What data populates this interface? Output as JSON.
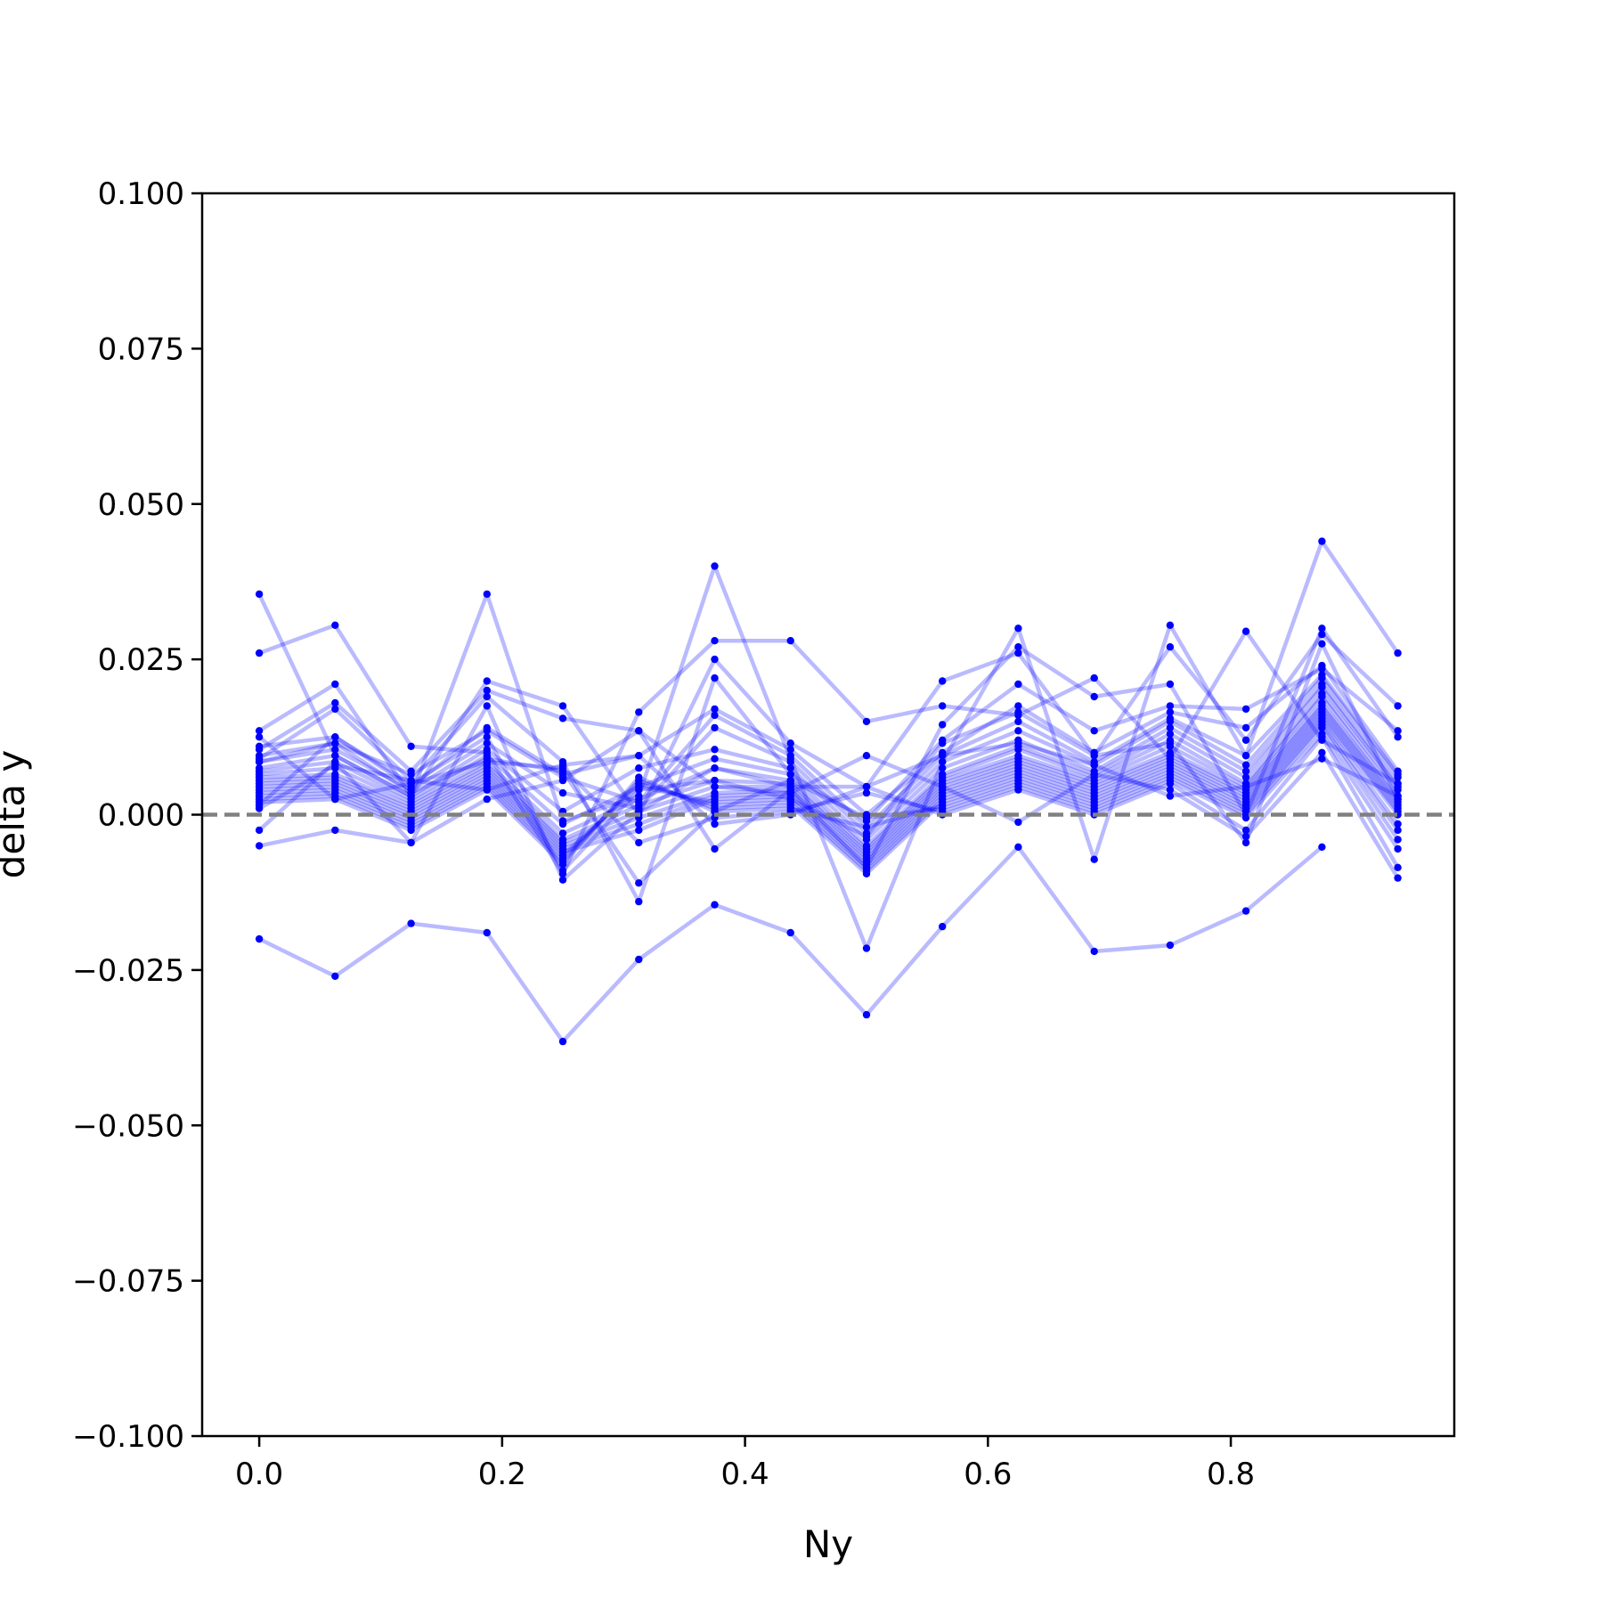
{
  "chart_data": {
    "type": "line",
    "xlabel": "Ny",
    "ylabel": "delta y",
    "xlim": [
      -0.047,
      0.984
    ],
    "ylim": [
      -0.1,
      0.1
    ],
    "xticks": [
      {
        "value": 0.0,
        "label": "0.0"
      },
      {
        "value": 0.2,
        "label": "0.2"
      },
      {
        "value": 0.4,
        "label": "0.4"
      },
      {
        "value": 0.6,
        "label": "0.6"
      },
      {
        "value": 0.8,
        "label": "0.8"
      }
    ],
    "yticks": [
      {
        "value": 0.1,
        "label": "0.100"
      },
      {
        "value": 0.075,
        "label": "0.075"
      },
      {
        "value": 0.05,
        "label": "0.050"
      },
      {
        "value": 0.025,
        "label": "0.025"
      },
      {
        "value": 0.0,
        "label": "0.000"
      },
      {
        "value": -0.025,
        "label": "−0.025"
      },
      {
        "value": -0.05,
        "label": "−0.050"
      },
      {
        "value": -0.075,
        "label": "−0.075"
      },
      {
        "value": -0.1,
        "label": "−0.100"
      }
    ],
    "reference_line": {
      "y": 0.0,
      "style": "dashed",
      "color": "#808080"
    },
    "colors": {
      "series": "#0000ff",
      "line_alpha": 0.27
    },
    "grid": false,
    "legend": "none",
    "x": [
      0.0,
      0.0625,
      0.125,
      0.1875,
      0.25,
      0.3125,
      0.375,
      0.4375,
      0.5,
      0.5625,
      0.625,
      0.6875,
      0.75,
      0.8125,
      0.875,
      0.9375
    ],
    "series": [
      {
        "values": [
          -0.02,
          -0.026,
          -0.0175,
          -0.019,
          -0.0365,
          -0.0233,
          -0.0145,
          -0.019,
          -0.0322,
          -0.018,
          -0.0052,
          -0.022,
          -0.021,
          -0.0155,
          -0.0052,
          null
        ]
      },
      {
        "values": [
          0.0355,
          0.0095,
          0.003,
          0.0355,
          -0.001,
          0.003,
          0.04,
          0.009,
          -0.0215,
          0.0085,
          0.03,
          -0.0072,
          0.0305,
          0.0095,
          0.044,
          0.026
        ]
      },
      {
        "values": [
          0.026,
          0.0305,
          0.011,
          0.01,
          -0.0095,
          0.0165,
          0.028,
          0.028,
          0.015,
          0.0175,
          0.016,
          0.022,
          0.009,
          0.0295,
          0.012,
          0.005
        ]
      },
      {
        "values": [
          0.0135,
          0.021,
          0.003,
          0.0215,
          0.0175,
          0.0,
          0.025,
          0.0115,
          0.0045,
          0.0215,
          0.026,
          0.0095,
          0.027,
          0.012,
          0.029,
          0.0175
        ]
      },
      {
        "values": [
          0.0105,
          0.018,
          0.007,
          0.02,
          0.0155,
          0.0135,
          -0.0055,
          0.004,
          -0.0085,
          0.0145,
          0.027,
          0.019,
          0.021,
          0.0,
          0.03,
          0.0125
        ]
      },
      {
        "values": [
          0.009,
          0.017,
          0.0055,
          0.019,
          0.0085,
          -0.014,
          0.022,
          0.0065,
          -0.001,
          0.012,
          0.021,
          0.0135,
          0.0175,
          0.017,
          0.0235,
          0.0135
        ]
      },
      {
        "values": [
          0.011,
          0.0125,
          0.0045,
          0.014,
          0.0065,
          0.0095,
          0.017,
          0.0105,
          0.0,
          0.01,
          0.0175,
          0.01,
          0.0165,
          0.014,
          0.024,
          0.007
        ]
      },
      {
        "values": [
          0.0095,
          0.0115,
          0.0065,
          0.0135,
          0.006,
          0.002,
          0.016,
          0.0095,
          -0.002,
          0.0095,
          0.015,
          0.0085,
          0.0155,
          0.0095,
          0.0225,
          0.0065
        ]
      },
      {
        "values": [
          0.0085,
          0.0105,
          0.004,
          0.0115,
          0.0035,
          0.001,
          0.014,
          0.0085,
          -0.003,
          0.0085,
          0.0135,
          0.008,
          0.015,
          0.008,
          0.022,
          0.006
        ]
      },
      {
        "values": [
          0.0075,
          0.0095,
          0.003,
          0.0105,
          0.0005,
          0.0075,
          0.0105,
          0.0075,
          -0.004,
          0.0075,
          0.012,
          0.007,
          0.014,
          0.007,
          0.021,
          0.005
        ]
      },
      {
        "values": [
          0.007,
          0.0085,
          0.0025,
          0.0095,
          -0.0015,
          0.0045,
          0.009,
          0.0065,
          -0.005,
          0.0065,
          0.011,
          0.0065,
          0.013,
          0.006,
          0.0205,
          0.0045
        ]
      },
      {
        "values": [
          0.0065,
          0.0075,
          0.002,
          0.0085,
          -0.003,
          0.0025,
          0.0075,
          0.0055,
          -0.0055,
          0.006,
          0.0105,
          0.006,
          0.012,
          0.005,
          0.0195,
          0.004
        ]
      },
      {
        "values": [
          0.006,
          0.0065,
          0.0015,
          0.008,
          -0.004,
          0.0015,
          0.0055,
          0.005,
          -0.006,
          0.0055,
          0.0095,
          0.0055,
          0.011,
          0.0045,
          0.019,
          0.003
        ]
      },
      {
        "values": [
          0.0055,
          0.006,
          0.001,
          0.0075,
          -0.0045,
          0.0005,
          0.0045,
          0.0045,
          -0.0065,
          0.005,
          0.009,
          0.005,
          0.01,
          0.004,
          0.018,
          0.0025
        ]
      },
      {
        "values": [
          0.005,
          0.0055,
          0.0005,
          0.007,
          -0.005,
          -0.0005,
          0.0035,
          0.004,
          -0.007,
          0.0045,
          0.0085,
          0.0045,
          0.0095,
          0.0035,
          0.0175,
          0.002
        ]
      },
      {
        "values": [
          0.0045,
          0.005,
          0.0,
          0.0065,
          -0.0055,
          -0.0015,
          0.003,
          0.0035,
          -0.0075,
          0.004,
          0.008,
          0.004,
          0.009,
          0.003,
          0.017,
          0.0015
        ]
      },
      {
        "values": [
          0.004,
          0.0045,
          -0.0005,
          0.006,
          -0.006,
          -0.0025,
          0.0025,
          0.003,
          -0.008,
          0.0035,
          0.0075,
          0.0035,
          0.0085,
          0.0025,
          0.0165,
          0.001
        ]
      },
      {
        "values": [
          0.0035,
          0.004,
          -0.001,
          0.0055,
          -0.0065,
          0.0045,
          0.002,
          0.0025,
          -0.0085,
          0.003,
          0.007,
          0.003,
          0.008,
          0.002,
          0.016,
          0.0005
        ]
      },
      {
        "values": [
          0.003,
          0.0035,
          -0.0015,
          0.005,
          -0.007,
          0.005,
          0.0015,
          0.002,
          -0.009,
          0.0025,
          0.0065,
          0.0025,
          0.0075,
          0.0015,
          0.0155,
          0.0
        ]
      },
      {
        "values": [
          0.0025,
          0.003,
          -0.002,
          0.0045,
          -0.0075,
          0.0055,
          0.001,
          0.0015,
          -0.0095,
          0.002,
          0.006,
          0.002,
          0.007,
          0.001,
          0.015,
          -0.0015
        ]
      },
      {
        "values": [
          0.002,
          0.0025,
          -0.0025,
          0.004,
          -0.008,
          0.006,
          0.0005,
          0.001,
          -0.002,
          0.0015,
          0.0055,
          0.0015,
          0.0065,
          0.0005,
          0.0145,
          -0.0025
        ]
      },
      {
        "values": [
          0.0085,
          0.0115,
          0.0035,
          0.009,
          0.007,
          -0.011,
          0.0005,
          0.0055,
          -0.0005,
          0.001,
          0.005,
          0.001,
          0.006,
          0.0,
          0.014,
          -0.004
        ]
      },
      {
        "values": [
          0.0015,
          0.0125,
          0.005,
          0.0085,
          0.0075,
          -0.0045,
          -0.0005,
          0.0005,
          0.0035,
          0.0005,
          0.0045,
          0.0005,
          0.0055,
          -0.0005,
          0.013,
          -0.0055
        ]
      },
      {
        "values": [
          0.001,
          0.008,
          0.0055,
          0.004,
          0.008,
          0.0095,
          -0.0015,
          0.0,
          0.0045,
          0.0,
          0.004,
          0.0,
          0.005,
          -0.0025,
          0.0125,
          -0.0085
        ]
      },
      {
        "values": [
          -0.0025,
          0.0085,
          -0.0045,
          0.0025,
          0.0055,
          0.0135,
          0.0045,
          0.0035,
          0.0095,
          0.0045,
          -0.0012,
          0.0065,
          0.004,
          -0.0035,
          0.01,
          -0.0102
        ]
      },
      {
        "values": [
          -0.005,
          -0.0025,
          -0.0045,
          0.0175,
          -0.0105,
          0.0005,
          0.0075,
          0.0045,
          0.0045,
          0.0095,
          0.0115,
          0.008,
          0.003,
          0.0045,
          0.009,
          0.003
        ]
      },
      {
        "values": [
          0.0125,
          0.0025,
          0.005,
          0.0125,
          -0.009,
          0.004,
          0.0055,
          0.0025,
          -0.0035,
          0.0115,
          0.0165,
          0.0095,
          0.0115,
          -0.0045,
          0.0275,
          0.0025
        ]
      }
    ]
  }
}
